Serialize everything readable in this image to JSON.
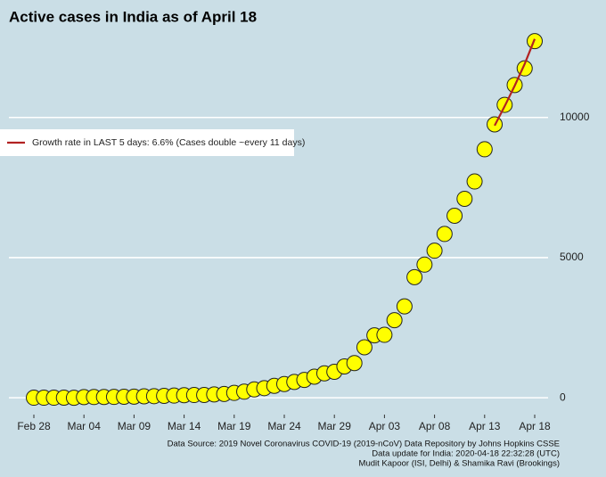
{
  "chart_data": {
    "type": "scatter",
    "title": "Active cases in India as of April 18",
    "categories": [
      "Feb 28",
      null,
      null,
      null,
      null,
      "Mar 04",
      null,
      null,
      null,
      null,
      "Mar 09",
      null,
      null,
      null,
      null,
      "Mar 14",
      null,
      null,
      null,
      null,
      "Mar 19",
      null,
      null,
      null,
      null,
      "Mar 24",
      null,
      null,
      null,
      null,
      "Mar 29",
      null,
      null,
      null,
      null,
      "Apr 03",
      null,
      null,
      null,
      null,
      "Apr 08",
      null,
      null,
      null,
      null,
      "Apr 13",
      null,
      null,
      null,
      null,
      "Apr 18"
    ],
    "series": [
      {
        "name": "Active cases",
        "mode": "markers",
        "color": "#ffff00",
        "values": [
          3,
          3,
          3,
          5,
          2,
          25,
          27,
          28,
          31,
          36,
          40,
          52,
          58,
          69,
          78,
          92,
          98,
          100,
          121,
          135,
          174,
          218,
          298,
          344,
          425,
          491,
          565,
          638,
          751,
          871,
          926,
          1117,
          1238,
          1801,
          2226,
          2245,
          2767,
          3260,
          4302,
          4750,
          5247,
          5844,
          6494,
          7099,
          7716,
          8865,
          9753,
          10451,
          11158,
          11752,
          12723
        ]
      },
      {
        "name": "Growth rate in LAST 5 days: 6.6% (Cases double ~every 11 days)",
        "mode": "line",
        "color": "#b22222",
        "values": [
          null,
          null,
          null,
          null,
          null,
          null,
          null,
          null,
          null,
          null,
          null,
          null,
          null,
          null,
          null,
          null,
          null,
          null,
          null,
          null,
          null,
          null,
          null,
          null,
          null,
          null,
          null,
          null,
          null,
          null,
          null,
          null,
          null,
          null,
          null,
          null,
          null,
          null,
          null,
          null,
          null,
          null,
          null,
          null,
          null,
          null,
          9710,
          10400,
          11130,
          11910,
          12800
        ]
      }
    ],
    "ylim": [
      -600,
      13300
    ],
    "yticks": [
      0,
      5000,
      10000
    ],
    "grid": true,
    "legend": "left",
    "notes": [
      "Data Source: 2019 Novel Coronavirus COVID-19 (2019-nCoV) Data Repository by Johns Hopkins CSSE",
      "Data update for India: 2020-04-18 22:32:28 (UTC)",
      "Mudit Kapoor (ISI, Delhi) & Shamika Ravi (Brookings)"
    ]
  }
}
